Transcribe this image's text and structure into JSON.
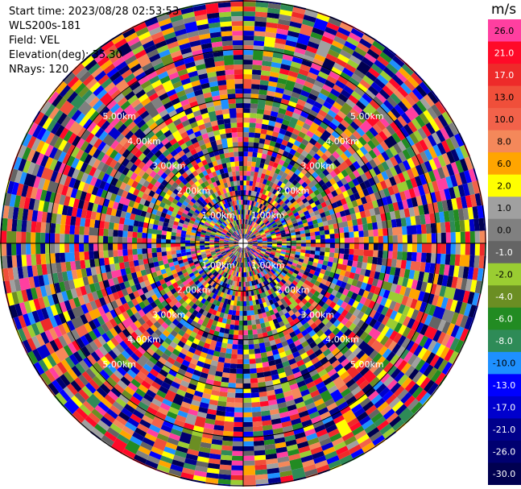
{
  "info": {
    "start_time": "Start time: 2023/08/28 02:53:53",
    "instrument": "WLS200s-181",
    "field": "Field: VEL",
    "elevation": "Elevation(deg): 35.30",
    "nrays": "NRays: 120"
  },
  "colorbar": {
    "unit": "m/s",
    "entries": [
      {
        "label": "26.0",
        "color": "#ff3fa0"
      },
      {
        "label": "21.0",
        "color": "#ff0a28"
      },
      {
        "label": "17.0",
        "color": "#ee2a2a"
      },
      {
        "label": "13.0",
        "color": "#f04f3a"
      },
      {
        "label": "10.0",
        "color": "#f2624a"
      },
      {
        "label": "8.0",
        "color": "#f4885a"
      },
      {
        "label": "6.0",
        "color": "#ffa500"
      },
      {
        "label": "2.0",
        "color": "#ffff00"
      },
      {
        "label": "1.0",
        "color": "#a0a0a0"
      },
      {
        "label": "0.0",
        "color": "#808080"
      },
      {
        "label": "-1.0",
        "color": "#646464"
      },
      {
        "label": "-2.0",
        "color": "#9acd32"
      },
      {
        "label": "-4.0",
        "color": "#6b8e23"
      },
      {
        "label": "-6.0",
        "color": "#228b22"
      },
      {
        "label": "-8.0",
        "color": "#2e8b57"
      },
      {
        "label": "-10.0",
        "color": "#1e90ff"
      },
      {
        "label": "-13.0",
        "color": "#0000ff"
      },
      {
        "label": "-17.0",
        "color": "#0000cd"
      },
      {
        "label": "-21.0",
        "color": "#00008b"
      },
      {
        "label": "-26.0",
        "color": "#000070"
      },
      {
        "label": "-30.0",
        "color": "#000050"
      }
    ]
  },
  "chart_data": {
    "type": "heatmap",
    "projection": "polar-ppi",
    "field": "VEL",
    "nrays": 120,
    "value_range_ms": [
      -30,
      26
    ],
    "range_ring_labels": [
      "1.00km",
      "2.00km",
      "3.00km",
      "4.00km",
      "5.00km"
    ],
    "pattern": "noise-dominated: velocities appear random across the full colormap at all ranges"
  }
}
